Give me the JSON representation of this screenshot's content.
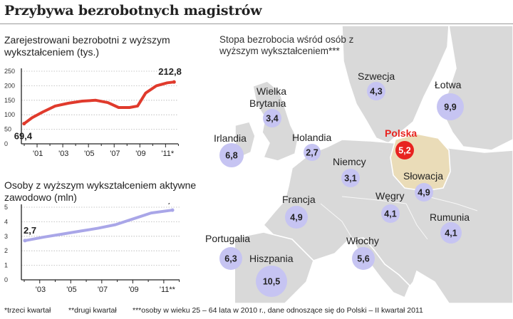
{
  "title": "Przybywa bezrobotnych magistrów",
  "chart_data": [
    {
      "type": "line",
      "title": "Zarejestrowani bezrobotni z wyższym wykształceniem (tys.)",
      "x_ticks": [
        "'01",
        "'03",
        "'05",
        "'07",
        "'09",
        "'11*"
      ],
      "y_ticks": [
        "250",
        "200",
        "150",
        "100",
        "50",
        "0"
      ],
      "ylim": [
        0,
        250
      ],
      "xlim": [
        2000,
        2011.6
      ],
      "x": [
        2000.2,
        2000.8,
        2001.6,
        2002.5,
        2003.5,
        2004.5,
        2005.5,
        2006.4,
        2007.2,
        2008.0,
        2008.6,
        2009.2,
        2010.0,
        2010.8,
        2011.3
      ],
      "values": [
        69.4,
        90,
        110,
        130,
        140,
        147,
        150,
        142,
        125,
        125,
        130,
        175,
        200,
        210,
        212.8
      ],
      "start_label": "69,4",
      "end_label": "212,8",
      "color": "#e03a2c"
    },
    {
      "type": "line",
      "title": "Osoby z wyższym wykształceniem aktywne zawodowo (mln)",
      "x_ticks": [
        "'03",
        "'05",
        "'07",
        "'09",
        "'11**"
      ],
      "y_ticks": [
        "5",
        "4",
        "3",
        "2",
        "1",
        "0"
      ],
      "ylim": [
        0,
        5
      ],
      "xlim": [
        2002.7,
        2011.6
      ],
      "x": [
        2002.9,
        2004.0,
        2005.0,
        2006.0,
        2007.0,
        2008.0,
        2009.0,
        2010.0,
        2011.2
      ],
      "values": [
        2.7,
        2.95,
        3.15,
        3.35,
        3.55,
        3.8,
        4.2,
        4.6,
        4.8
      ],
      "start_label": "2,7",
      "end_label": "4,8",
      "color": "#a9a6e8"
    },
    {
      "type": "map",
      "title": "Stopa bezrobocia wśród osób z wyższym wykształceniem***",
      "countries": [
        {
          "name": "Szwecja",
          "value": "4,3"
        },
        {
          "name": "Łotwa",
          "value": "9,9"
        },
        {
          "name": "Wielka Brytania",
          "value": "3,4"
        },
        {
          "name": "Irlandia",
          "value": "6,8"
        },
        {
          "name": "Holandia",
          "value": "2,7"
        },
        {
          "name": "Polska",
          "value": "5,2",
          "highlight": true
        },
        {
          "name": "Niemcy",
          "value": "3,1"
        },
        {
          "name": "Słowacja",
          "value": "4,9"
        },
        {
          "name": "Francja",
          "value": "4,9"
        },
        {
          "name": "Węgry",
          "value": "4,1"
        },
        {
          "name": "Rumunia",
          "value": "4,1"
        },
        {
          "name": "Portugalia",
          "value": "6,3"
        },
        {
          "name": "Włochy",
          "value": "5,6"
        },
        {
          "name": "Hiszpania",
          "value": "10,5"
        }
      ],
      "bubble_color": "#c6c4f2",
      "highlight_color": "#e8231f"
    }
  ],
  "footer": {
    "note1": "*trzeci kwartał",
    "note2": "**drugi kwartał",
    "note3": "***osoby w wieku 25 – 64 lata w 2010 r., dane odnoszące się do   Polski – II kwartał 2011"
  },
  "colors": {
    "land": "#d9d9d9",
    "poland": "#eadcb8",
    "sea": "#ffffff"
  }
}
